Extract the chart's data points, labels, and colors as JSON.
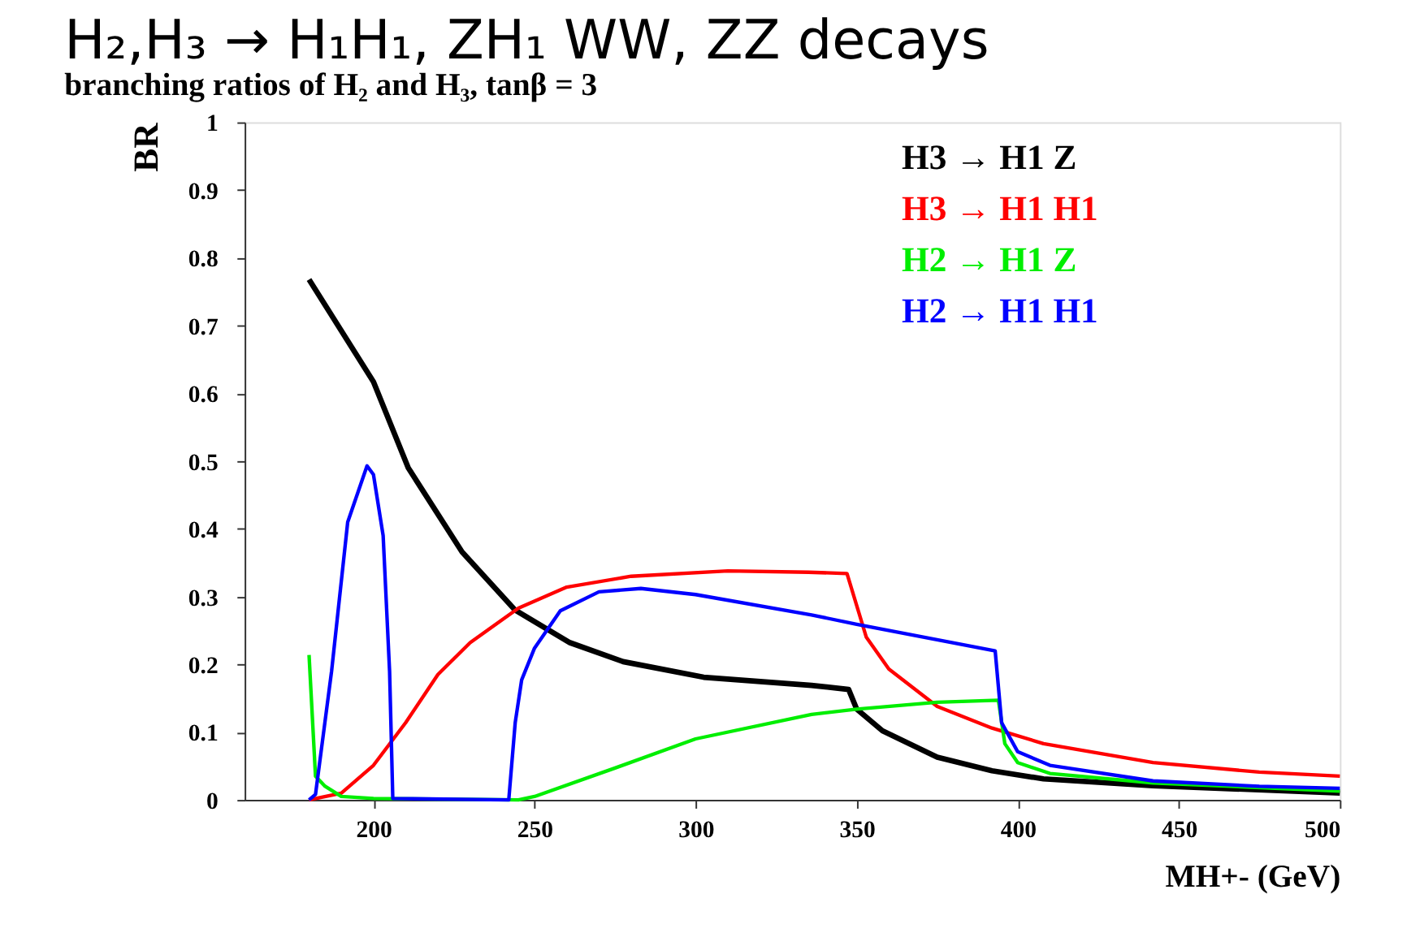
{
  "chart_data": {
    "type": "line",
    "title": "H₂,H₃ → H₁H₁, ZH₁ WW, ZZ decays",
    "subtitle": "branching ratios of H₂ and H₃,   tanβ = 3",
    "xlabel": "MH+- (GeV)",
    "ylabel": "BR",
    "xlim": [
      160,
      500
    ],
    "ylim": [
      0,
      1
    ],
    "xticks": [
      200,
      250,
      300,
      350,
      400,
      450,
      500
    ],
    "yticks": [
      0,
      0.1,
      0.2,
      0.3,
      0.4,
      0.5,
      0.6,
      0.7,
      0.8,
      0.9,
      1
    ],
    "grid": false,
    "legend": "top right",
    "marker": "none",
    "line_style": "solid",
    "series": [
      {
        "name": "H3 → H1 Z",
        "color": "#000000",
        "x": [
          180,
          200,
          210.8,
          227.5,
          244,
          261,
          277.5,
          302.5,
          336,
          347.5,
          350,
          358,
          375,
          392,
          408,
          442,
          500
        ],
        "values": [
          0.768,
          0.617,
          0.49,
          0.366,
          0.28,
          0.232,
          0.204,
          0.181,
          0.169,
          0.163,
          0.134,
          0.102,
          0.063,
          0.043,
          0.031,
          0.021,
          0.01
        ]
      },
      {
        "name": "H3 → H1 H1",
        "color": "#ff0000",
        "x": [
          180,
          190,
          200,
          210,
          220,
          230,
          245,
          260,
          280,
          310,
          335,
          347,
          350,
          353,
          360,
          375,
          392,
          408,
          442,
          475,
          500
        ],
        "values": [
          0,
          0.01,
          0.051,
          0.114,
          0.185,
          0.232,
          0.283,
          0.314,
          0.33,
          0.338,
          0.336,
          0.334,
          0.287,
          0.24,
          0.193,
          0.138,
          0.106,
          0.083,
          0.055,
          0.041,
          0.035
        ]
      },
      {
        "name": "H2 → H1 Z",
        "color": "#00ee00",
        "x": [
          180,
          182,
          185,
          190,
          200,
          245,
          250,
          275,
          300,
          336,
          350,
          375,
          394,
          396,
          400,
          410,
          442,
          500
        ],
        "values": [
          0.214,
          0.035,
          0.02,
          0.005,
          0.002,
          0,
          0.005,
          0.047,
          0.09,
          0.126,
          0.134,
          0.144,
          0.147,
          0.083,
          0.055,
          0.039,
          0.025,
          0.013
        ]
      },
      {
        "name": "H2 → H1 H1",
        "color": "#0000ff",
        "x": [
          180,
          182,
          187,
          192,
          198,
          200,
          203,
          205,
          206,
          242,
          244,
          246,
          250,
          258,
          270,
          283,
          300,
          336,
          350,
          393,
          395,
          400,
          410,
          442,
          475,
          500
        ],
        "values": [
          0,
          0.008,
          0.19,
          0.41,
          0.493,
          0.48,
          0.39,
          0.19,
          0.002,
          0,
          0.114,
          0.177,
          0.224,
          0.279,
          0.307,
          0.312,
          0.303,
          0.273,
          0.259,
          0.22,
          0.114,
          0.071,
          0.051,
          0.028,
          0.02,
          0.017
        ]
      }
    ]
  }
}
